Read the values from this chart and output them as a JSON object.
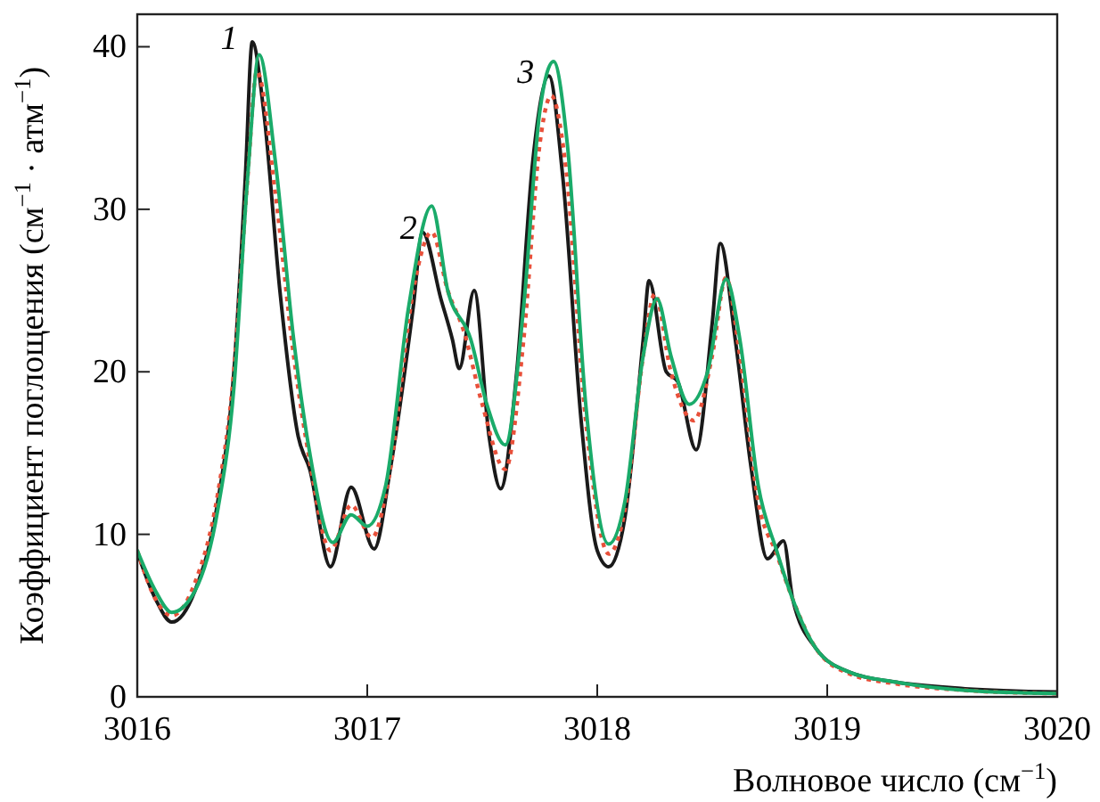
{
  "chart_data": {
    "type": "line",
    "xlabel": "Волновое число (см$^{−1}$)",
    "ylabel": "Коэффициент поглощения (см$^{−1}$ · атм$^{−1}$)",
    "xlim": [
      3016,
      3020
    ],
    "ylim": [
      0,
      42
    ],
    "xticks": [
      3016,
      3017,
      3018,
      3019,
      3020
    ],
    "yticks": [
      0,
      10,
      20,
      30,
      40
    ],
    "grid": false,
    "series": [
      {
        "color": "#1a1a1a",
        "line_style": "solid",
        "x": [
          3016.0,
          3016.08,
          3016.15,
          3016.25,
          3016.35,
          3016.42,
          3016.47,
          3016.5,
          3016.55,
          3016.62,
          3016.7,
          3016.75,
          3016.84,
          3016.93,
          3017.03,
          3017.1,
          3017.2,
          3017.24,
          3017.32,
          3017.37,
          3017.4,
          3017.465,
          3017.53,
          3017.58,
          3017.65,
          3017.72,
          3017.79,
          3017.85,
          3017.93,
          3018.0,
          3018.05,
          3018.12,
          3018.2,
          3018.225,
          3018.3,
          3018.35,
          3018.43,
          3018.5,
          3018.535,
          3018.6,
          3018.67,
          3018.74,
          3018.81,
          3018.85,
          3018.95,
          3019.1,
          3019.3,
          3019.6,
          3020.0
        ],
        "values": [
          8.9,
          6,
          4.6,
          6.5,
          12,
          20,
          32,
          40.3,
          36,
          25,
          16,
          14,
          8,
          12.9,
          9.1,
          14,
          24,
          28.6,
          24.5,
          22,
          20.2,
          25,
          16,
          12.8,
          20,
          33,
          38.2,
          32,
          17,
          9,
          8,
          11,
          22,
          25.6,
          20,
          19.4,
          15.2,
          23,
          27.9,
          22,
          14,
          8.5,
          9.6,
          6,
          3,
          1.5,
          0.9,
          0.5,
          0.3
        ]
      },
      {
        "color": "#e8503a",
        "line_style": "dotted",
        "x": [
          3016.0,
          3016.08,
          3016.15,
          3016.25,
          3016.35,
          3016.42,
          3016.48,
          3016.52,
          3016.6,
          3016.68,
          3016.75,
          3016.84,
          3016.93,
          3017.02,
          3017.1,
          3017.2,
          3017.28,
          3017.35,
          3017.42,
          3017.5,
          3017.6,
          3017.68,
          3017.75,
          3017.8,
          3017.86,
          3017.95,
          3018.05,
          3018.12,
          3018.2,
          3018.25,
          3018.32,
          3018.42,
          3018.5,
          3018.56,
          3018.62,
          3018.7,
          3018.78,
          3018.85,
          3018.95,
          3019.1,
          3019.3,
          3019.6,
          3020.0
        ],
        "values": [
          9,
          6,
          5,
          7,
          12.5,
          20,
          32,
          38.5,
          31,
          21,
          14.5,
          9,
          11.8,
          9.8,
          14,
          25,
          28.6,
          25,
          22.5,
          18,
          14,
          22,
          34,
          37,
          33,
          17,
          8.8,
          11.5,
          21,
          24.8,
          20,
          17,
          21,
          25.8,
          21,
          12,
          8.8,
          6,
          3,
          1.4,
          0.8,
          0.4,
          0.2
        ]
      },
      {
        "color": "#1aab6a",
        "line_style": "solid",
        "x": [
          3016.0,
          3016.08,
          3016.15,
          3016.25,
          3016.35,
          3016.42,
          3016.48,
          3016.53,
          3016.6,
          3016.68,
          3016.75,
          3016.85,
          3016.93,
          3017.0,
          3017.08,
          3017.18,
          3017.28,
          3017.35,
          3017.45,
          3017.52,
          3017.6,
          3017.68,
          3017.75,
          3017.81,
          3017.87,
          3017.95,
          3018.05,
          3018.12,
          3018.2,
          3018.26,
          3018.32,
          3018.4,
          3018.48,
          3018.56,
          3018.62,
          3018.7,
          3018.78,
          3018.85,
          3018.95,
          3019.1,
          3019.3,
          3019.6,
          3020.0
        ],
        "values": [
          9,
          6.5,
          5.2,
          6.5,
          11.5,
          19,
          32,
          39.5,
          33,
          22,
          15,
          9.5,
          11.2,
          10.5,
          13,
          24,
          30.2,
          25,
          22,
          18,
          15.5,
          24,
          36,
          39.1,
          34,
          18,
          9.4,
          12,
          21,
          24.5,
          21,
          18,
          20,
          25.7,
          22,
          13,
          9,
          6,
          3,
          1.5,
          0.9,
          0.4,
          0.2
        ]
      }
    ],
    "annotations": [
      {
        "text": "1",
        "x": 3016.5,
        "y": 40.3
      },
      {
        "text": "2",
        "x": 3017.28,
        "y": 28.6
      },
      {
        "text": "3",
        "x": 3017.79,
        "y": 38.2
      }
    ]
  }
}
